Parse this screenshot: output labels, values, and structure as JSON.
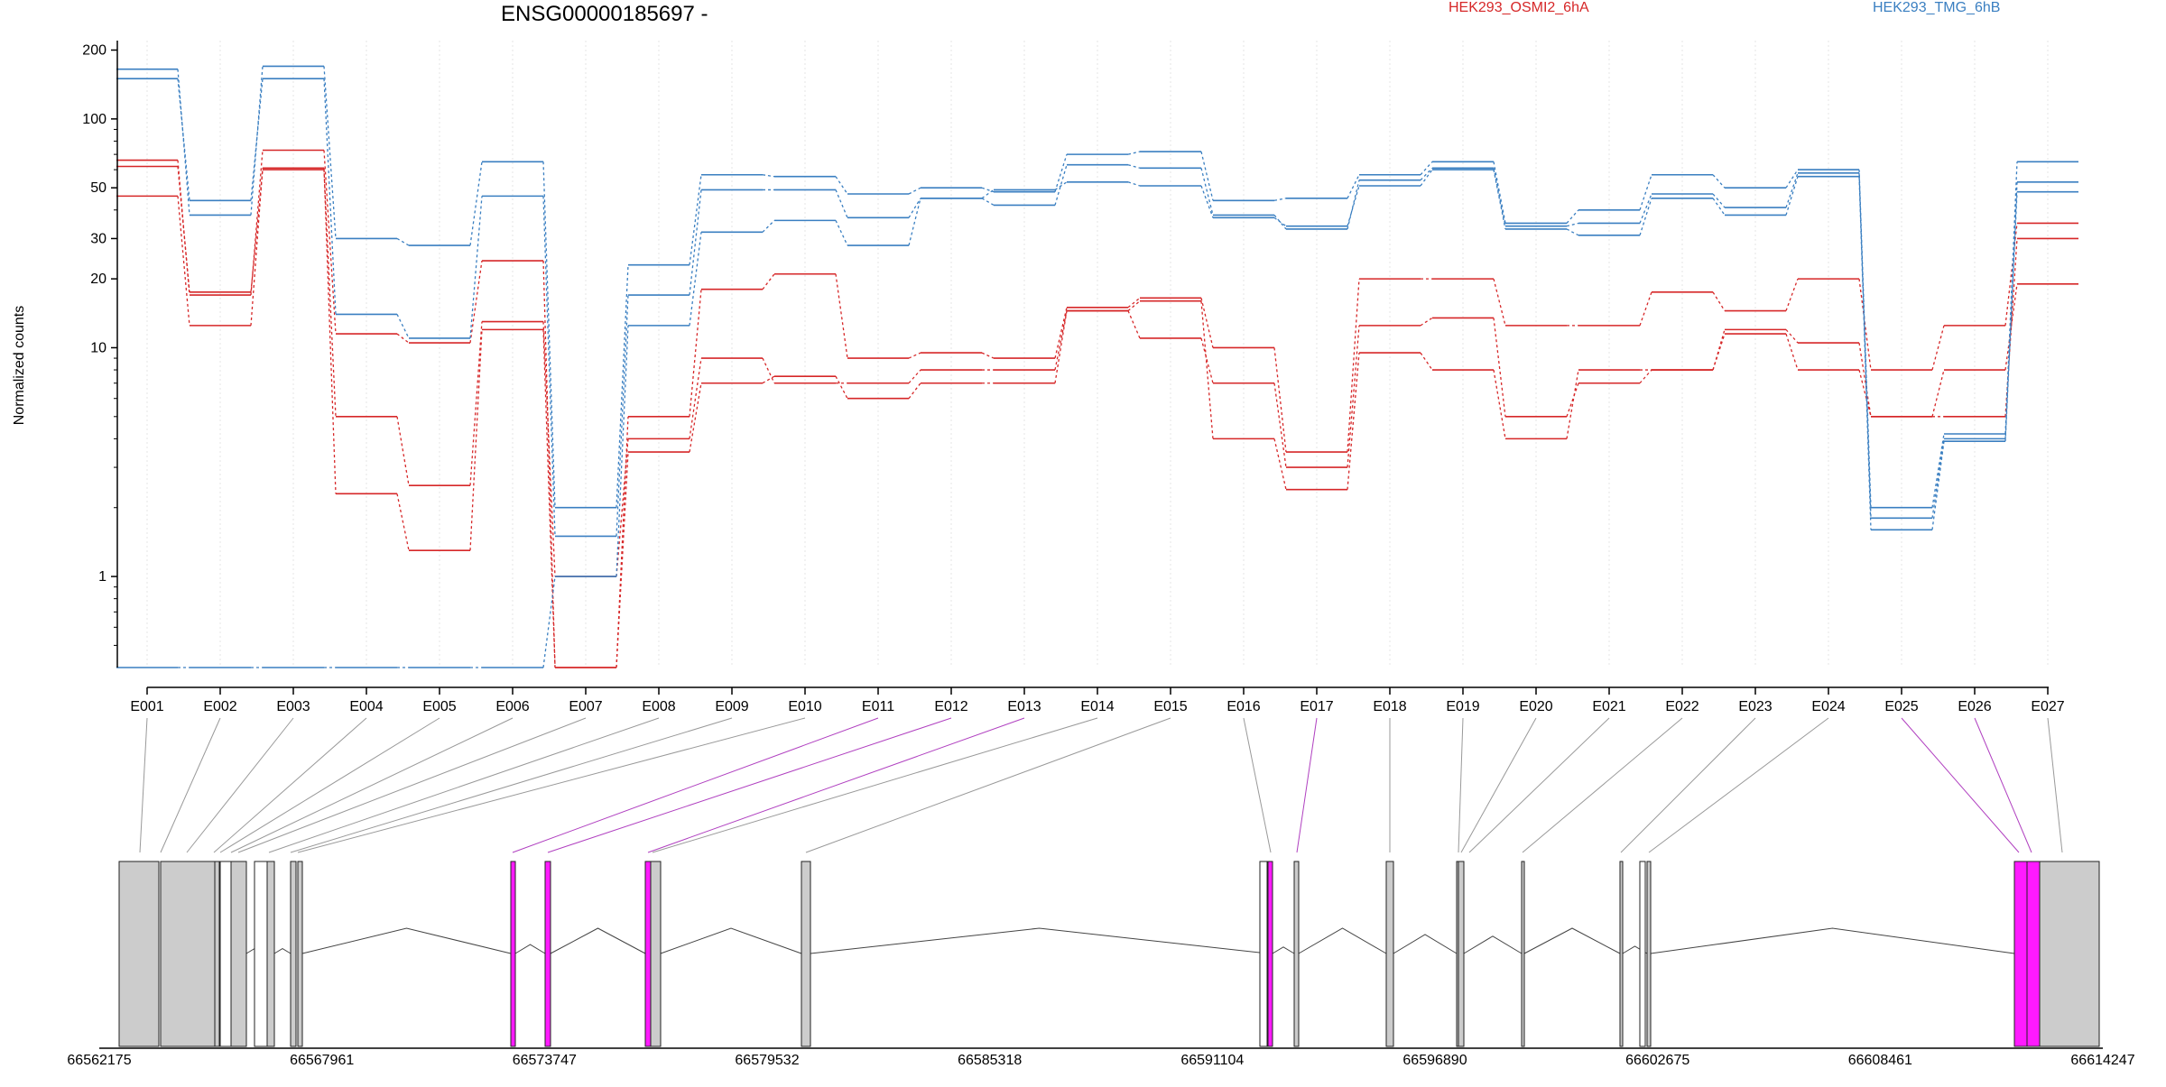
{
  "chart_data": {
    "type": "line",
    "title": "ENSG00000185697 -",
    "xlabel": "",
    "ylabel": "Normalized counts",
    "y_scale": "log",
    "ylim": [
      0.4,
      220
    ],
    "yticks": [
      1,
      10,
      20,
      30,
      50,
      100,
      200
    ],
    "grid": "vertical",
    "legend_placement": "top-right",
    "categories": [
      "E001",
      "E002",
      "E003",
      "E004",
      "E005",
      "E006",
      "E007",
      "E008",
      "E009",
      "E010",
      "E011",
      "E012",
      "E013",
      "E014",
      "E015",
      "E016",
      "E017",
      "E018",
      "E019",
      "E020",
      "E021",
      "E022",
      "E023",
      "E024",
      "E025",
      "E026",
      "E027"
    ],
    "legend": [
      {
        "label": "HEK293_OSMI2_6hA",
        "color": "#d62728"
      },
      {
        "label": "HEK293_TMG_6hB",
        "color": "#3a7fc1"
      }
    ],
    "series": [
      {
        "group": "HEK293_OSMI2_6hA",
        "color": "#d62728",
        "values": [
          66,
          17,
          73,
          11.5,
          10.5,
          24,
          0.4,
          5,
          18,
          21,
          9,
          9.5,
          9,
          15,
          16.5,
          10,
          3.5,
          20,
          20,
          12.5,
          12.5,
          17.5,
          14.5,
          20,
          8,
          12.5,
          35
        ]
      },
      {
        "group": "HEK293_OSMI2_6hA",
        "color": "#d62728",
        "values": [
          62,
          17.5,
          60,
          5,
          2.5,
          13,
          1.0,
          4,
          9,
          7,
          7,
          8,
          8,
          14.5,
          11,
          7,
          3,
          12.5,
          13.5,
          5,
          7,
          8,
          12,
          10.5,
          5,
          5,
          30
        ]
      },
      {
        "group": "HEK293_OSMI2_6hA",
        "color": "#d62728",
        "values": [
          46,
          12.5,
          61,
          2.3,
          1.3,
          12,
          0.4,
          3.5,
          7,
          7.5,
          6,
          7,
          7,
          14.5,
          16,
          4,
          2.4,
          9.5,
          8,
          4,
          8,
          8,
          11.5,
          8,
          5,
          8,
          19
        ]
      },
      {
        "group": "HEK293_TMG_6hB",
        "color": "#3a7fc1",
        "values": [
          165,
          38,
          170,
          30,
          28,
          65,
          2.0,
          23,
          57,
          56,
          47,
          50,
          48,
          70,
          72,
          44,
          45,
          57,
          65,
          35,
          40,
          57,
          50,
          60,
          2.0,
          4.2,
          65
        ]
      },
      {
        "group": "HEK293_TMG_6hB",
        "color": "#3a7fc1",
        "values": [
          150,
          44,
          150,
          14,
          11,
          46,
          1.5,
          17,
          49,
          49,
          37,
          45,
          42,
          63,
          61,
          38,
          33,
          54,
          61,
          34,
          35,
          47,
          41,
          58,
          1.8,
          4,
          53
        ]
      },
      {
        "group": "HEK293_TMG_6hB",
        "color": "#3a7fc1",
        "values": [
          0.4,
          0.4,
          0.4,
          0.4,
          0.4,
          0.4,
          1.0,
          12.5,
          32,
          36,
          28,
          45,
          49,
          53,
          51,
          37,
          34,
          51,
          60,
          33,
          31,
          45,
          38,
          56,
          1.6,
          3.9,
          48
        ]
      }
    ],
    "gene_model": {
      "coordinate_ticks": [
        "66562175",
        "66567961",
        "66573747",
        "66579532",
        "66585318",
        "66591104",
        "66596890",
        "66602675",
        "66608461",
        "66614247"
      ],
      "highlighted_exons": [
        "E011",
        "E012",
        "E013",
        "E017",
        "E025",
        "E026"
      ],
      "highlight_color": "#ff1aff",
      "exon_color": "#cccccc"
    }
  }
}
